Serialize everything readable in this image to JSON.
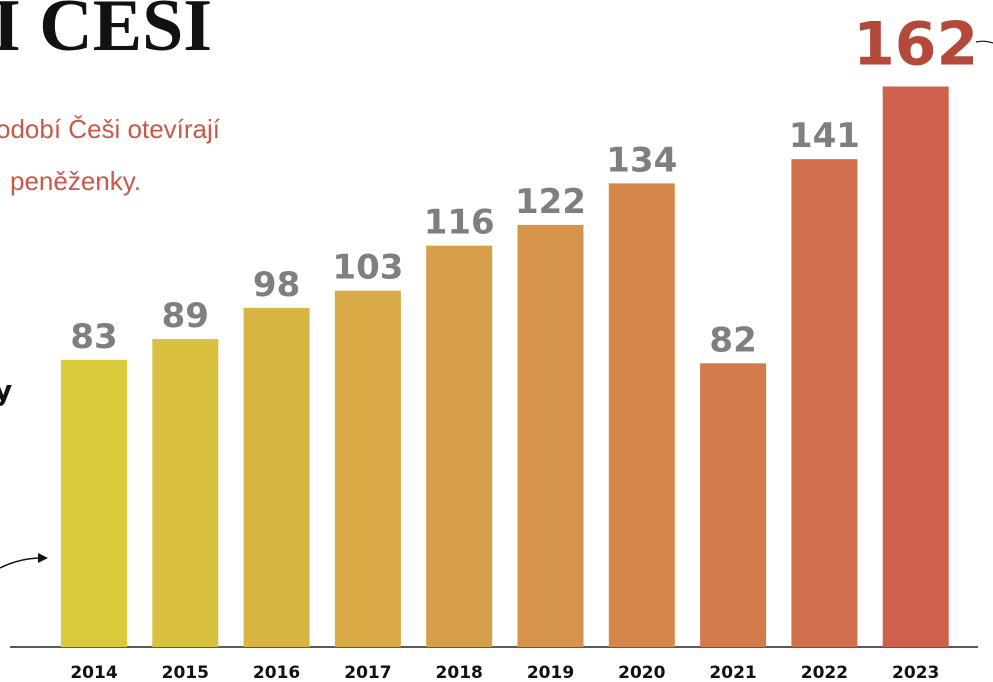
{
  "title": "I ČESI",
  "subtitle_lines": [
    "odobí Češi otevírají",
    "peněženky."
  ],
  "annotation": "y",
  "chart_data": {
    "type": "bar",
    "categories": [
      "2014",
      "2015",
      "2016",
      "2017",
      "2018",
      "2019",
      "2020",
      "2021",
      "2022",
      "2023"
    ],
    "values": [
      83,
      89,
      98,
      103,
      116,
      122,
      134,
      82,
      141,
      162
    ],
    "colors": [
      "#d9c93b",
      "#d9c03f",
      "#d8b543",
      "#d8aa46",
      "#d79f49",
      "#d6934a",
      "#d5874b",
      "#d37b4c",
      "#d16f4d",
      "#cf604c"
    ],
    "ylim": [
      0,
      187
    ]
  }
}
